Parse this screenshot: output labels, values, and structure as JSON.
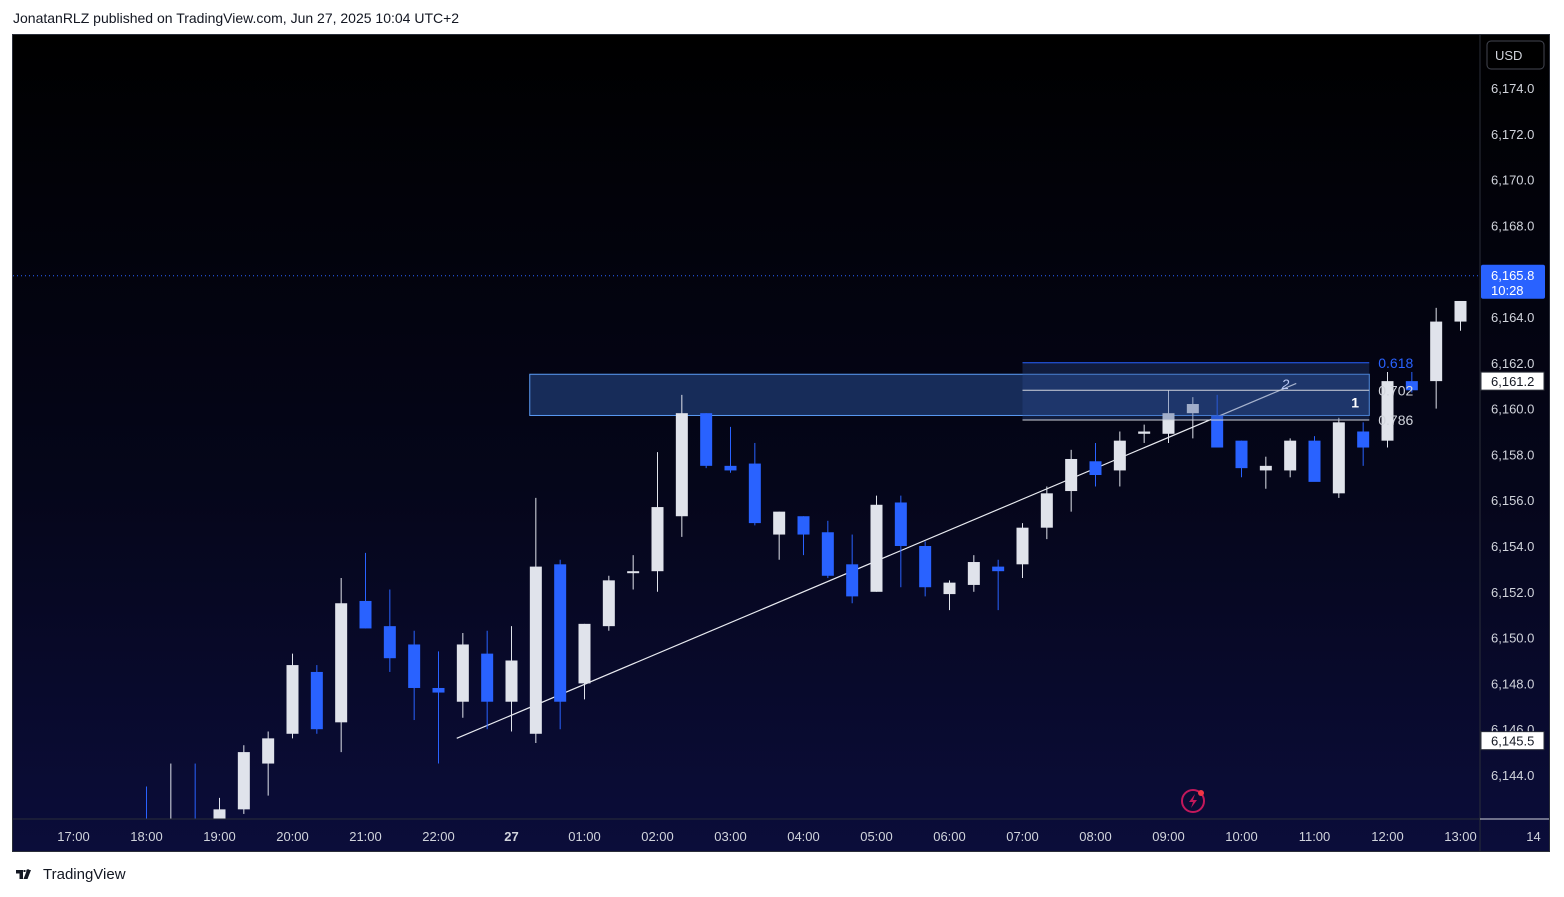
{
  "header": {
    "attribution": "JonatanRLZ published on TradingView.com, Jun 27, 2025 10:04 UTC+2"
  },
  "footer": {
    "brand": "TradingView",
    "logo_icon": "tradingview-logo-icon"
  },
  "colors": {
    "background_top": "#000000",
    "background_bottom": "#0b0d3a",
    "up_candle": "#e0e3eb",
    "down_candle": "#2962ff",
    "zone_fill": "#1e3a70",
    "zone_border": "#5b9cf6",
    "fib_618": "#2962ff",
    "axis_text": "#d1d4dc"
  },
  "chart_data": {
    "type": "candlestick",
    "timeframe": "20m",
    "currency_label": "USD",
    "y_ticks": [
      "6,144.0",
      "6,146.0",
      "6,148.0",
      "6,150.0",
      "6,152.0",
      "6,154.0",
      "6,156.0",
      "6,158.0",
      "6,160.0",
      "6,162.0",
      "6,164.0",
      "6,166.0",
      "6,168.0",
      "6,170.0",
      "6,172.0",
      "6,174.0"
    ],
    "x_ticks": [
      {
        "label": "17:00",
        "t": -7
      },
      {
        "label": "18:00",
        "t": -6
      },
      {
        "label": "19:00",
        "t": -5
      },
      {
        "label": "20:00",
        "t": -4
      },
      {
        "label": "21:00",
        "t": -3
      },
      {
        "label": "22:00",
        "t": -2
      },
      {
        "label": "27",
        "t": -1
      },
      {
        "label": "01:00",
        "t": 0
      },
      {
        "label": "02:00",
        "t": 1
      },
      {
        "label": "03:00",
        "t": 2
      },
      {
        "label": "04:00",
        "t": 3
      },
      {
        "label": "05:00",
        "t": 4
      },
      {
        "label": "06:00",
        "t": 5
      },
      {
        "label": "07:00",
        "t": 6
      },
      {
        "label": "08:00",
        "t": 7
      },
      {
        "label": "09:00",
        "t": 8
      },
      {
        "label": "10:00",
        "t": 9
      },
      {
        "label": "11:00",
        "t": 10
      },
      {
        "label": "12:00",
        "t": 11
      },
      {
        "label": "13:00",
        "t": 12
      },
      {
        "label": "14",
        "t": 13
      }
    ],
    "ylim": [
      6142.8,
      6175.4
    ],
    "last_price": "6,165.8",
    "countdown": "10:28",
    "price_labels": [
      "6,161.2",
      "6,145.5"
    ],
    "candles": [
      {
        "t": "18:00",
        "o": 6141.9,
        "h": 6143.5,
        "l": 6141.6,
        "c": 6141.8
      },
      {
        "t": "18:20",
        "o": 6141.8,
        "h": 6144.5,
        "l": 6141.3,
        "c": 6142.0
      },
      {
        "t": "18:40",
        "o": 6142.0,
        "h": 6144.5,
        "l": 6141.4,
        "c": 6141.9
      },
      {
        "t": "19:00",
        "o": 6141.5,
        "h": 6143.0,
        "l": 6141.0,
        "c": 6142.5
      },
      {
        "t": "19:20",
        "o": 6142.5,
        "h": 6145.3,
        "l": 6142.3,
        "c": 6145.0
      },
      {
        "t": "19:40",
        "o": 6144.5,
        "h": 6145.9,
        "l": 6143.1,
        "c": 6145.6
      },
      {
        "t": "20:00",
        "o": 6145.8,
        "h": 6149.3,
        "l": 6145.6,
        "c": 6148.8
      },
      {
        "t": "20:20",
        "o": 6148.5,
        "h": 6148.8,
        "l": 6145.8,
        "c": 6146.0
      },
      {
        "t": "20:40",
        "o": 6146.3,
        "h": 6152.6,
        "l": 6145.0,
        "c": 6151.5
      },
      {
        "t": "21:00",
        "o": 6151.6,
        "h": 6153.7,
        "l": 6150.4,
        "c": 6150.4
      },
      {
        "t": "21:20",
        "o": 6150.5,
        "h": 6152.1,
        "l": 6148.5,
        "c": 6149.1
      },
      {
        "t": "21:40",
        "o": 6149.7,
        "h": 6150.3,
        "l": 6146.4,
        "c": 6147.8
      },
      {
        "t": "22:00",
        "o": 6147.8,
        "h": 6149.4,
        "l": 6144.5,
        "c": 6147.6
      },
      {
        "t": "22:20",
        "o": 6147.2,
        "h": 6150.2,
        "l": 6146.5,
        "c": 6149.7
      },
      {
        "t": "22:40",
        "o": 6149.3,
        "h": 6150.3,
        "l": 6146.0,
        "c": 6147.2
      },
      {
        "t": "23:00",
        "o": 6147.2,
        "h": 6150.5,
        "l": 6145.9,
        "c": 6149.0
      },
      {
        "t": "23:20",
        "o": 6145.8,
        "h": 6156.1,
        "l": 6145.4,
        "c": 6153.1
      },
      {
        "t": "23:40",
        "o": 6153.2,
        "h": 6153.4,
        "l": 6146.0,
        "c": 6147.2
      },
      {
        "t": "00:00",
        "o": 6148.0,
        "h": 6150.6,
        "l": 6147.3,
        "c": 6150.6
      },
      {
        "t": "00:20",
        "o": 6150.5,
        "h": 6152.7,
        "l": 6150.3,
        "c": 6152.5
      },
      {
        "t": "00:40",
        "o": 6152.9,
        "h": 6153.6,
        "l": 6152.1,
        "c": 6152.9
      },
      {
        "t": "01:00",
        "o": 6152.9,
        "h": 6158.1,
        "l": 6152.0,
        "c": 6155.7
      },
      {
        "t": "01:20",
        "o": 6155.3,
        "h": 6160.6,
        "l": 6154.4,
        "c": 6159.8
      },
      {
        "t": "01:40",
        "o": 6159.8,
        "h": 6159.8,
        "l": 6157.4,
        "c": 6157.5
      },
      {
        "t": "02:00",
        "o": 6157.5,
        "h": 6159.2,
        "l": 6157.2,
        "c": 6157.3
      },
      {
        "t": "02:20",
        "o": 6157.6,
        "h": 6158.5,
        "l": 6154.9,
        "c": 6155.0
      },
      {
        "t": "02:40",
        "o": 6154.5,
        "h": 6155.5,
        "l": 6153.4,
        "c": 6155.5
      },
      {
        "t": "03:00",
        "o": 6155.3,
        "h": 6155.3,
        "l": 6153.6,
        "c": 6154.5
      },
      {
        "t": "03:20",
        "o": 6154.6,
        "h": 6155.1,
        "l": 6152.6,
        "c": 6152.7
      },
      {
        "t": "03:40",
        "o": 6153.2,
        "h": 6154.5,
        "l": 6151.5,
        "c": 6151.8
      },
      {
        "t": "04:00",
        "o": 6152.0,
        "h": 6156.2,
        "l": 6152.0,
        "c": 6155.8
      },
      {
        "t": "04:20",
        "o": 6155.9,
        "h": 6156.2,
        "l": 6152.2,
        "c": 6154.0
      },
      {
        "t": "04:40",
        "o": 6154.0,
        "h": 6154.2,
        "l": 6151.8,
        "c": 6152.2
      },
      {
        "t": "05:00",
        "o": 6151.9,
        "h": 6152.5,
        "l": 6151.2,
        "c": 6152.4
      },
      {
        "t": "05:20",
        "o": 6152.3,
        "h": 6153.6,
        "l": 6152.0,
        "c": 6153.3
      },
      {
        "t": "05:40",
        "o": 6153.1,
        "h": 6153.4,
        "l": 6151.2,
        "c": 6152.9
      },
      {
        "t": "06:00",
        "o": 6153.2,
        "h": 6155.0,
        "l": 6152.6,
        "c": 6154.8
      },
      {
        "t": "06:20",
        "o": 6154.8,
        "h": 6156.6,
        "l": 6154.3,
        "c": 6156.3
      },
      {
        "t": "06:40",
        "o": 6156.4,
        "h": 6158.2,
        "l": 6155.5,
        "c": 6157.8
      },
      {
        "t": "07:00",
        "o": 6157.7,
        "h": 6158.5,
        "l": 6156.6,
        "c": 6157.1
      },
      {
        "t": "07:20",
        "o": 6157.3,
        "h": 6159.0,
        "l": 6156.6,
        "c": 6158.6
      },
      {
        "t": "07:40",
        "o": 6158.9,
        "h": 6159.3,
        "l": 6158.5,
        "c": 6159.0
      },
      {
        "t": "08:00",
        "o": 6158.9,
        "h": 6160.8,
        "l": 6158.5,
        "c": 6159.8
      },
      {
        "t": "08:20",
        "o": 6159.8,
        "h": 6160.5,
        "l": 6158.7,
        "c": 6160.2
      },
      {
        "t": "08:40",
        "o": 6159.7,
        "h": 6160.6,
        "l": 6158.6,
        "c": 6158.3
      },
      {
        "t": "09:00",
        "o": 6158.6,
        "h": 6158.6,
        "l": 6157.0,
        "c": 6157.4
      },
      {
        "t": "09:20",
        "o": 6157.3,
        "h": 6157.9,
        "l": 6156.5,
        "c": 6157.5
      },
      {
        "t": "09:40",
        "o": 6157.3,
        "h": 6158.7,
        "l": 6157.0,
        "c": 6158.6
      },
      {
        "t": "10:00",
        "o": 6158.6,
        "h": 6158.8,
        "l": 6157.0,
        "c": 6156.8
      },
      {
        "t": "10:20",
        "o": 6156.3,
        "h": 6159.6,
        "l": 6156.1,
        "c": 6159.4
      },
      {
        "t": "10:40",
        "o": 6159.0,
        "h": 6159.4,
        "l": 6157.5,
        "c": 6158.3
      },
      {
        "t": "11:00",
        "o": 6158.6,
        "h": 6161.6,
        "l": 6158.3,
        "c": 6161.2
      },
      {
        "t": "11:20",
        "o": 6161.2,
        "h": 6161.6,
        "l": 6160.7,
        "c": 6160.8
      },
      {
        "t": "11:40",
        "o": 6161.2,
        "h": 6164.4,
        "l": 6160.0,
        "c": 6163.8
      },
      {
        "t": "12:00",
        "o": 6163.8,
        "h": 6164.5,
        "l": 6163.4,
        "c": 6164.7
      },
      {
        "t": "12:20",
        "o": 6164.6,
        "h": 6170.3,
        "l": 6164.2,
        "c": 6170.3
      },
      {
        "t": "12:40",
        "o": 6169.8,
        "h": 6170.3,
        "l": 6166.7,
        "c": 6167.3
      },
      {
        "t": "13:00",
        "o": 6167.3,
        "h": 6167.6,
        "l": 6165.2,
        "c": 6167.1
      },
      {
        "t": "13:20",
        "o": 6167.1,
        "h": 6171.1,
        "l": 6166.3,
        "c": 6169.5
      },
      {
        "t": "13:40",
        "o": 6169.6,
        "h": 6169.6,
        "l": 6165.2,
        "c": 6166.2
      },
      {
        "t": "14:00",
        "o": 6166.3,
        "h": 6168.2,
        "l": 6165.9,
        "c": 6166.9
      },
      {
        "t": "14:20",
        "o": 6167.0,
        "h": 6168.2,
        "l": 6165.8,
        "c": 6165.8
      }
    ],
    "drawings": {
      "zone_labels": [
        "1",
        "2"
      ],
      "trendline": {
        "from": {
          "t": -1.75,
          "price": 6145.6
        },
        "to": {
          "t": 9.75,
          "price": 6161.1
        }
      },
      "supply_zone": {
        "t_start": -0.75,
        "t_end": 10.75,
        "price_top": 6161.5,
        "price_bottom": 6159.7
      },
      "fib_box": {
        "t_start": 6.0,
        "t_end": 10.75,
        "price_top": 6162.0,
        "price_bottom": 6159.5
      },
      "fib_levels": [
        {
          "label": "0.618",
          "price": 6162.0,
          "color": "#2962ff"
        },
        {
          "label": "0.702",
          "price": 6160.8,
          "color": "#d1d4dc"
        },
        {
          "label": "0.786",
          "price": 6159.5,
          "color": "#d1d4dc"
        }
      ]
    }
  }
}
